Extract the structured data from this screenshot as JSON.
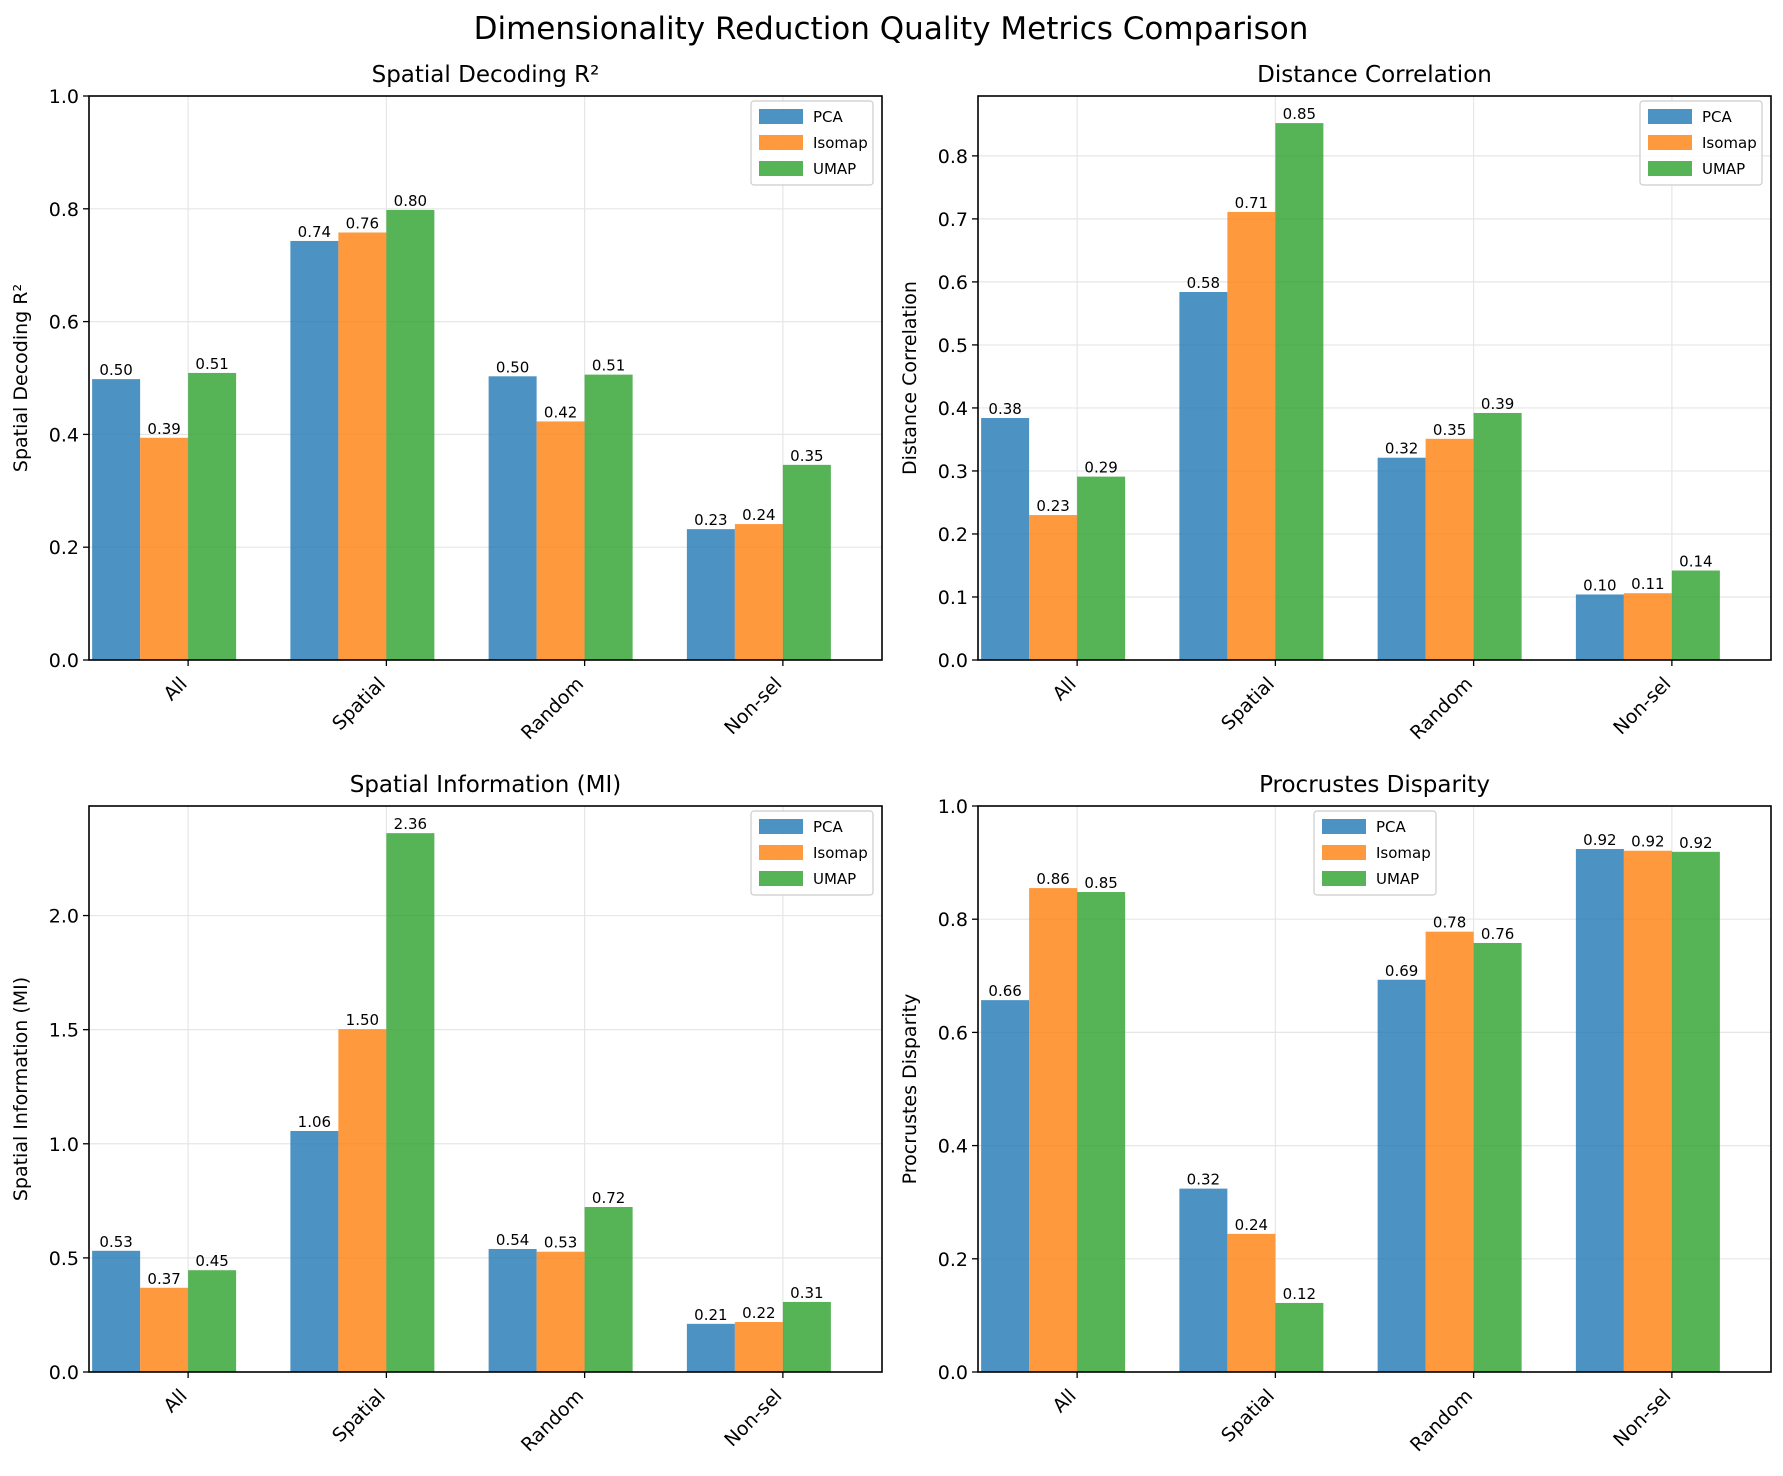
{
  "figure": {
    "suptitle": "Dimensionality Reduction Quality Metrics Comparison"
  },
  "colors": {
    "PCA": "#1f77b4",
    "Isomap": "#ff7f0e",
    "UMAP": "#2ca02c"
  },
  "chart_data": [
    {
      "type": "bar",
      "title": "Spatial Decoding R²",
      "xlabel": "",
      "ylabel": "Spatial Decoding R²",
      "categories": [
        "All",
        "Spatial",
        "Random",
        "Non-sel"
      ],
      "ylim": [
        0,
        1.0
      ],
      "yticks": [
        "0.0",
        "0.2",
        "0.4",
        "0.6",
        "0.8",
        "1.0"
      ],
      "legend_position": "top-right",
      "grid": true,
      "series": [
        {
          "name": "PCA",
          "values": [
            0.498,
            0.743,
            0.503,
            0.232
          ],
          "labels": [
            "0.50",
            "0.74",
            "0.50",
            "0.23"
          ]
        },
        {
          "name": "Isomap",
          "values": [
            0.394,
            0.758,
            0.423,
            0.241
          ],
          "labels": [
            "0.39",
            "0.76",
            "0.42",
            "0.24"
          ]
        },
        {
          "name": "UMAP",
          "values": [
            0.509,
            0.798,
            0.506,
            0.346
          ],
          "labels": [
            "0.51",
            "0.80",
            "0.51",
            "0.35"
          ]
        }
      ]
    },
    {
      "type": "bar",
      "title": "Distance Correlation",
      "xlabel": "",
      "ylabel": "Distance Correlation",
      "categories": [
        "All",
        "Spatial",
        "Random",
        "Non-sel"
      ],
      "ylim": [
        0,
        0.895
      ],
      "yticks": [
        "0.0",
        "0.1",
        "0.2",
        "0.3",
        "0.4",
        "0.5",
        "0.6",
        "0.7",
        "0.8"
      ],
      "legend_position": "top-right",
      "grid": true,
      "series": [
        {
          "name": "PCA",
          "values": [
            0.384,
            0.584,
            0.321,
            0.104
          ],
          "labels": [
            "0.38",
            "0.58",
            "0.32",
            "0.10"
          ]
        },
        {
          "name": "Isomap",
          "values": [
            0.23,
            0.711,
            0.351,
            0.106
          ],
          "labels": [
            "0.23",
            "0.71",
            "0.35",
            "0.11"
          ]
        },
        {
          "name": "UMAP",
          "values": [
            0.291,
            0.852,
            0.392,
            0.142
          ],
          "labels": [
            "0.29",
            "0.85",
            "0.39",
            "0.14"
          ]
        }
      ]
    },
    {
      "type": "bar",
      "title": "Spatial Information (MI)",
      "xlabel": "",
      "ylabel": "Spatial Information (MI)",
      "categories": [
        "All",
        "Spatial",
        "Random",
        "Non-sel"
      ],
      "ylim": [
        0,
        2.48
      ],
      "yticks": [
        "0.0",
        "0.5",
        "1.0",
        "1.5",
        "2.0"
      ],
      "legend_position": "top-right",
      "grid": true,
      "series": [
        {
          "name": "PCA",
          "values": [
            0.531,
            1.056,
            0.539,
            0.211
          ],
          "labels": [
            "0.53",
            "1.06",
            "0.54",
            "0.21"
          ]
        },
        {
          "name": "Isomap",
          "values": [
            0.369,
            1.502,
            0.527,
            0.219
          ],
          "labels": [
            "0.37",
            "1.50",
            "0.53",
            "0.22"
          ]
        },
        {
          "name": "UMAP",
          "values": [
            0.446,
            2.361,
            0.723,
            0.307
          ],
          "labels": [
            "0.45",
            "2.36",
            "0.72",
            "0.31"
          ]
        }
      ]
    },
    {
      "type": "bar",
      "title": "Procrustes Disparity",
      "xlabel": "",
      "ylabel": "Procrustes Disparity",
      "categories": [
        "All",
        "Spatial",
        "Random",
        "Non-sel"
      ],
      "ylim": [
        0,
        1.0
      ],
      "yticks": [
        "0.0",
        "0.2",
        "0.4",
        "0.6",
        "0.8",
        "1.0"
      ],
      "legend_position": "upper center",
      "grid": true,
      "series": [
        {
          "name": "PCA",
          "values": [
            0.657,
            0.324,
            0.693,
            0.924
          ],
          "labels": [
            "0.66",
            "0.32",
            "0.69",
            "0.92"
          ]
        },
        {
          "name": "Isomap",
          "values": [
            0.855,
            0.244,
            0.778,
            0.921
          ],
          "labels": [
            "0.86",
            "0.24",
            "0.78",
            "0.92"
          ]
        },
        {
          "name": "UMAP",
          "values": [
            0.848,
            0.122,
            0.758,
            0.919
          ],
          "labels": [
            "0.85",
            "0.12",
            "0.76",
            "0.92"
          ]
        }
      ]
    }
  ]
}
